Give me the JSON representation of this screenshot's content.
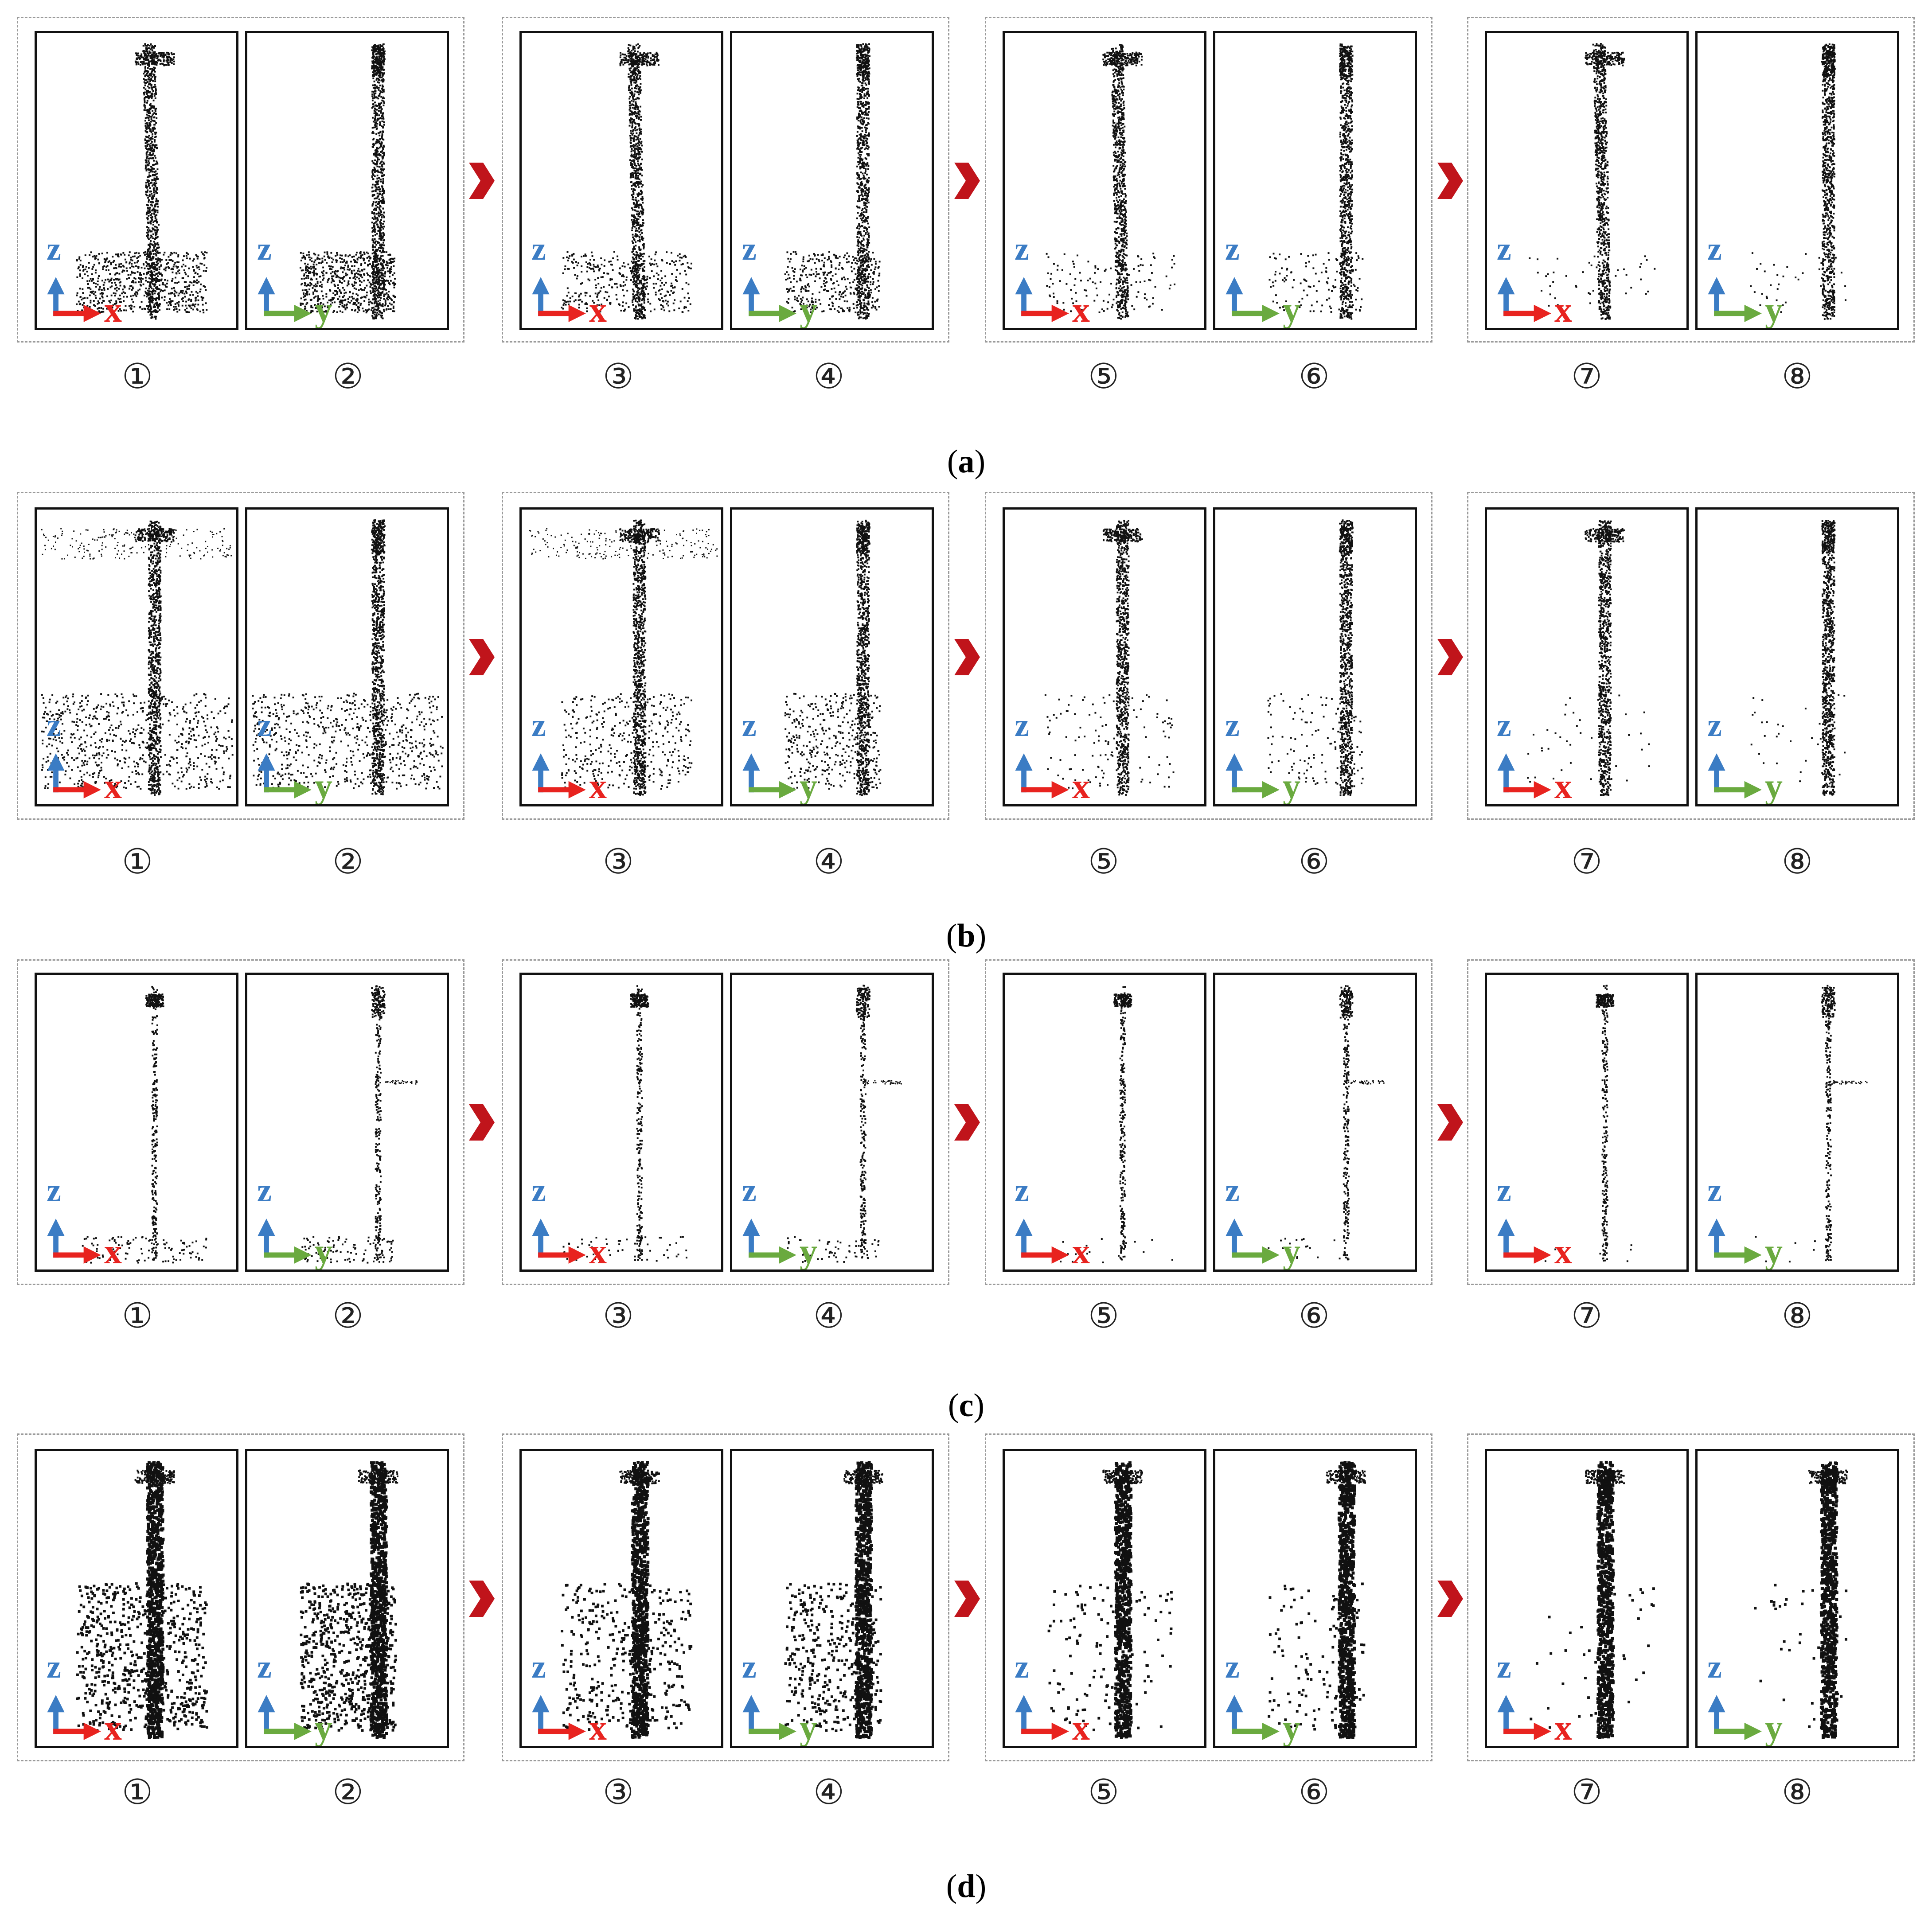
{
  "axis_labels": {
    "vertical": "z",
    "horizontal_odd": "x",
    "horizontal_even": "y"
  },
  "colors": {
    "z_axis": "#3b7cc4",
    "x_axis": "#e8231f",
    "y_axis": "#6aaa3f",
    "chevron": "#c0141b",
    "points": "#111111",
    "dashed_border": "#9a9a9a"
  },
  "panel_numbers": [
    "①",
    "②",
    "③",
    "④",
    "⑤",
    "⑥",
    "⑦",
    "⑧"
  ],
  "rows": [
    {
      "caption_open": "(",
      "caption_letter": "a",
      "caption_close": ")"
    },
    {
      "caption_open": "(",
      "caption_letter": "b",
      "caption_close": ")"
    },
    {
      "caption_open": "(",
      "caption_letter": "c",
      "caption_close": ")"
    },
    {
      "caption_open": "(",
      "caption_letter": "d",
      "caption_close": ")"
    }
  ],
  "icons": {
    "step_arrow": "chevron-right-icon",
    "axes": "axes-icon"
  }
}
